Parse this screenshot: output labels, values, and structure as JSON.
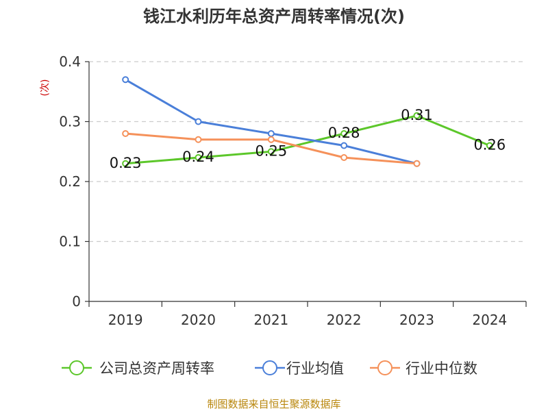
{
  "chart_data": {
    "type": "line",
    "title": "钱江水利历年总资产周转率情况(次)",
    "ylabel": "(次)",
    "xlabel": "",
    "categories": [
      "2019",
      "2020",
      "2021",
      "2022",
      "2023",
      "2024"
    ],
    "yticks": [
      "0",
      "0.1",
      "0.2",
      "0.3",
      "0.4"
    ],
    "ytick_values": [
      0,
      0.1,
      0.2,
      0.3,
      0.4
    ],
    "ylim": [
      0,
      0.4
    ],
    "grid": true,
    "legend_position": "bottom",
    "series": [
      {
        "name": "公司总资产周转率",
        "color": "#5cc72a",
        "values": [
          0.23,
          0.24,
          0.25,
          0.28,
          0.31,
          0.26
        ],
        "labels": [
          "0.23",
          "0.24",
          "0.25",
          "0.28",
          "0.31",
          "0.26"
        ]
      },
      {
        "name": "行业均值",
        "color": "#4a7fd9",
        "values": [
          0.37,
          0.3,
          0.28,
          0.26,
          0.23,
          null
        ]
      },
      {
        "name": "行业中位数",
        "color": "#f5915a",
        "values": [
          0.28,
          0.27,
          0.27,
          0.24,
          0.23,
          null
        ]
      }
    ]
  },
  "source": "制图数据来自恒生聚源数据库"
}
